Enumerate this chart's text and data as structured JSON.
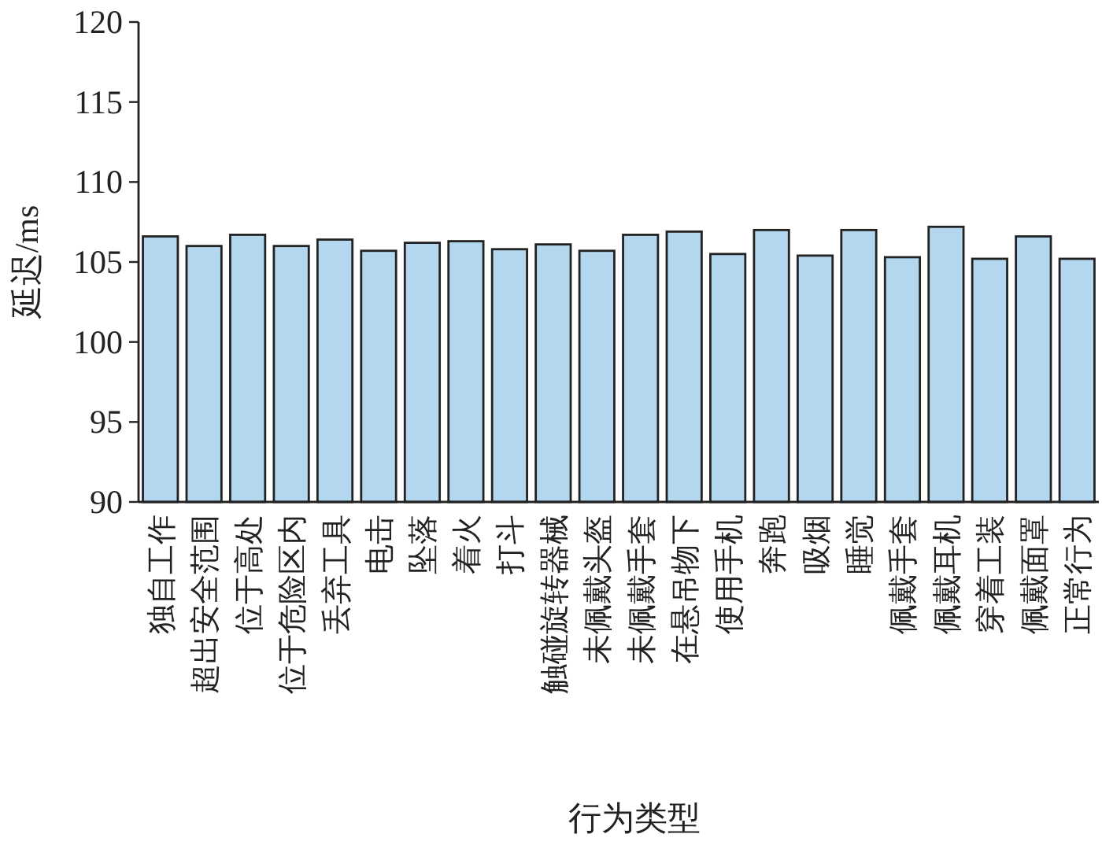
{
  "chart_data": {
    "type": "bar",
    "xlabel": "行为类型",
    "ylabel": "延迟/ms",
    "categories": [
      "独自工作",
      "超出安全范围",
      "位于高处",
      "位于危险区内",
      "丢弃工具",
      "电击",
      "坠落",
      "着火",
      "打斗",
      "触碰旋转器械",
      "未佩戴头盔",
      "未佩戴手套",
      "在悬吊物下",
      "使用手机",
      "奔跑",
      "吸烟",
      "睡觉",
      "佩戴手套",
      "佩戴耳机",
      "穿着工装",
      "佩戴面罩",
      "正常行为"
    ],
    "values": [
      106.6,
      106.0,
      106.7,
      106.0,
      106.4,
      105.7,
      106.2,
      106.3,
      105.8,
      106.1,
      105.7,
      106.7,
      106.9,
      105.5,
      107.0,
      105.4,
      107.0,
      105.3,
      107.2,
      105.2,
      106.6,
      105.2
    ],
    "color": "#b3d7ee",
    "ylim": [
      90,
      120
    ],
    "yticks": [
      90,
      95,
      100,
      105,
      110,
      115,
      120
    ],
    "grid": false
  }
}
